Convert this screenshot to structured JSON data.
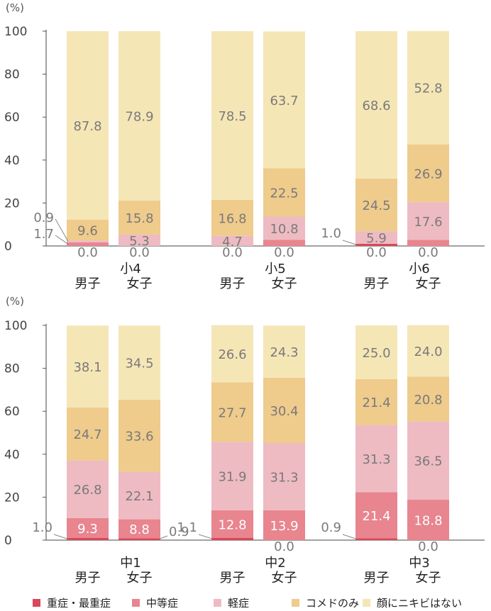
{
  "chart_data": {
    "type": "bar",
    "stacked": true,
    "unit": "(%)",
    "ylim": [
      0,
      100
    ],
    "yticks": [
      0,
      20,
      40,
      60,
      80,
      100
    ],
    "series": [
      {
        "name": "重症・最重症",
        "color": "#d9485b"
      },
      {
        "name": "中等症",
        "color": "#e8858f"
      },
      {
        "name": "軽症",
        "color": "#eebbc2"
      },
      {
        "name": "コメドのみ",
        "color": "#efcb8c"
      },
      {
        "name": "顔にニキビはない",
        "color": "#f5e6b6"
      }
    ],
    "panels": [
      {
        "unit": "(%)",
        "groups": [
          {
            "grade": "小4",
            "bars": [
              {
                "label": "男子",
                "values": [
                  0.0,
                  1.7,
                  0.9,
                  9.6,
                  87.8
                ]
              },
              {
                "label": "女子",
                "values": [
                  0.0,
                  0.0,
                  5.3,
                  15.8,
                  78.9
                ]
              }
            ]
          },
          {
            "grade": "小5",
            "bars": [
              {
                "label": "男子",
                "values": [
                  0.0,
                  0.0,
                  4.7,
                  16.8,
                  78.5
                ]
              },
              {
                "label": "女子",
                "values": [
                  0.0,
                  2.9,
                  10.8,
                  22.5,
                  63.7
                ]
              }
            ]
          },
          {
            "grade": "小6",
            "bars": [
              {
                "label": "男子",
                "values": [
                  1.0,
                  0.0,
                  5.9,
                  24.5,
                  68.6
                ]
              },
              {
                "label": "女子",
                "values": [
                  0.0,
                  2.8,
                  17.6,
                  26.9,
                  52.8
                ]
              }
            ]
          }
        ]
      },
      {
        "unit": "(%)",
        "groups": [
          {
            "grade": "中1",
            "bars": [
              {
                "label": "男子",
                "values": [
                  1.0,
                  9.3,
                  26.8,
                  24.7,
                  38.1
                ]
              },
              {
                "label": "女子",
                "values": [
                  0.9,
                  8.8,
                  22.1,
                  33.6,
                  34.5
                ]
              }
            ]
          },
          {
            "grade": "中2",
            "bars": [
              {
                "label": "男子",
                "values": [
                  1.1,
                  12.8,
                  31.9,
                  27.7,
                  26.6
                ]
              },
              {
                "label": "女子",
                "values": [
                  0.0,
                  13.9,
                  31.3,
                  30.4,
                  24.3
                ]
              }
            ]
          },
          {
            "grade": "中3",
            "bars": [
              {
                "label": "男子",
                "values": [
                  0.9,
                  21.4,
                  31.3,
                  21.4,
                  25.0
                ]
              },
              {
                "label": "女子",
                "values": [
                  0.0,
                  18.8,
                  36.5,
                  20.8,
                  24.0
                ]
              }
            ]
          }
        ]
      }
    ]
  }
}
